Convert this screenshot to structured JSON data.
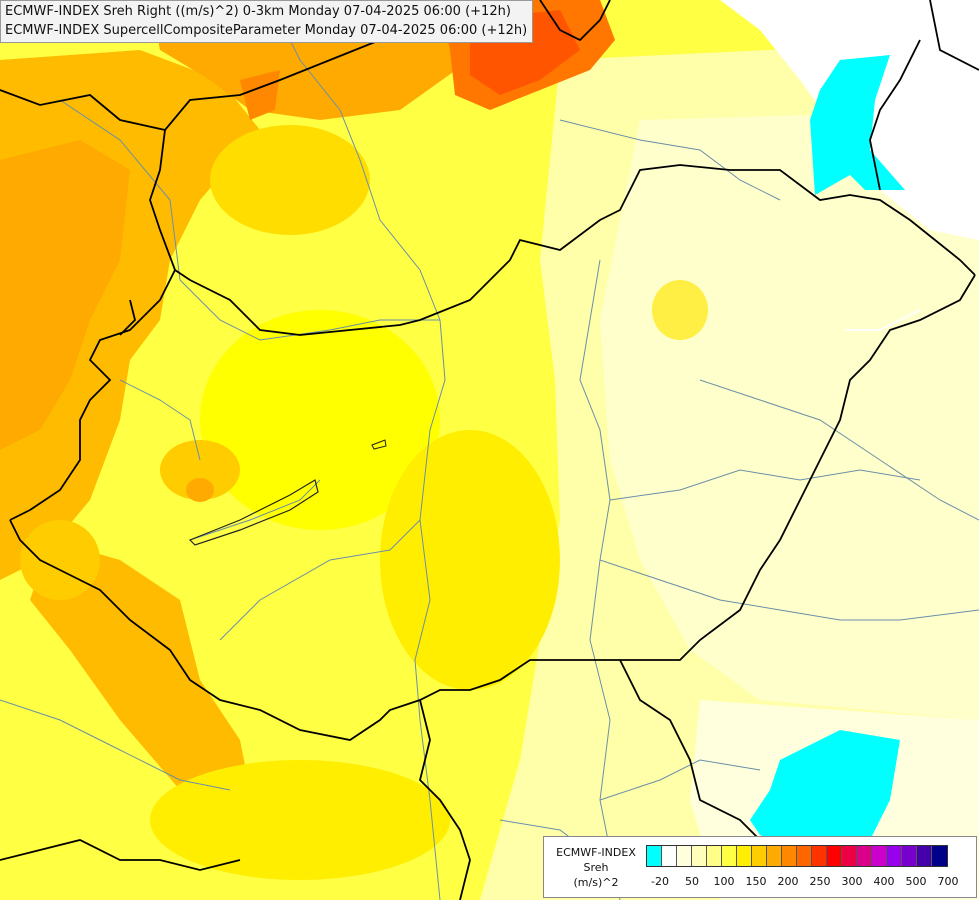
{
  "titles": {
    "line1": "ECMWF-INDEX Sreh Right ((m/s)^2) 0-3km Monday 07-04-2025 06:00 (+12h)",
    "line2": "ECMWF-INDEX SupercellCompositeParameter Monday 07-04-2025 06:00 (+12h)"
  },
  "legend": {
    "title1": "ECMWF-INDEX",
    "title2": "Sreh",
    "title3": "(m/s)^2",
    "colors": [
      "#00ffff",
      "#ffffff",
      "#ffffdd",
      "#ffffbb",
      "#ffff88",
      "#ffff44",
      "#ffee00",
      "#ffcc00",
      "#ffaa00",
      "#ff8800",
      "#ff6600",
      "#ff3300",
      "#ff0000",
      "#ee0044",
      "#dd0088",
      "#cc00cc",
      "#9900ee",
      "#7700cc",
      "#4400aa",
      "#000088"
    ],
    "ticks": [
      "-20",
      "50",
      "100",
      "150",
      "200",
      "250",
      "300",
      "400",
      "500",
      "700"
    ]
  }
}
